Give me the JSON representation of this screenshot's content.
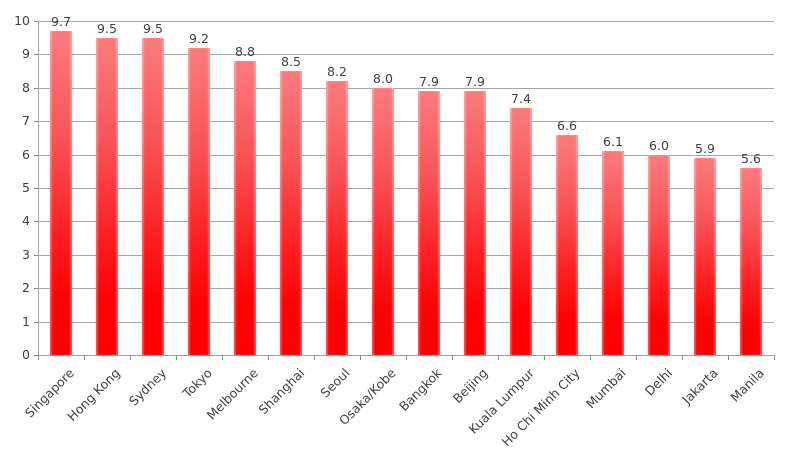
{
  "chart_data": {
    "type": "bar",
    "title": "",
    "xlabel": "",
    "ylabel": "",
    "categories": [
      "Singapore",
      "Hong Kong",
      "Sydney",
      "Tokyo",
      "Melbourne",
      "Shanghai",
      "Seoul",
      "Osaka/Kobe",
      "Bangkok",
      "Beijing",
      "Kuala Lumpur",
      "Ho Chi Minh City",
      "Mumbai",
      "Delhi",
      "Jakarta",
      "Manila"
    ],
    "values": [
      9.7,
      9.5,
      9.5,
      9.2,
      8.8,
      8.5,
      8.2,
      8.0,
      7.9,
      7.9,
      7.4,
      6.6,
      6.1,
      6.0,
      5.9,
      5.6
    ],
    "value_labels": [
      "9.7",
      "9.5",
      "9.5",
      "9.2",
      "8.8",
      "8.5",
      "8.2",
      "8.0",
      "7.9",
      "7.9",
      "7.4",
      "6.6",
      "6.1",
      "6.0",
      "5.9",
      "5.6"
    ],
    "ylim": [
      0,
      10
    ],
    "yticks": [
      0,
      1,
      2,
      3,
      4,
      5,
      6,
      7,
      8,
      9,
      10
    ],
    "grid": true,
    "legend": null,
    "colors": {
      "bar_top": "#fa7c7e",
      "bar_bottom": "#ff0000",
      "gridline": "#a6a6a6",
      "text": "#3f3f3f"
    }
  }
}
